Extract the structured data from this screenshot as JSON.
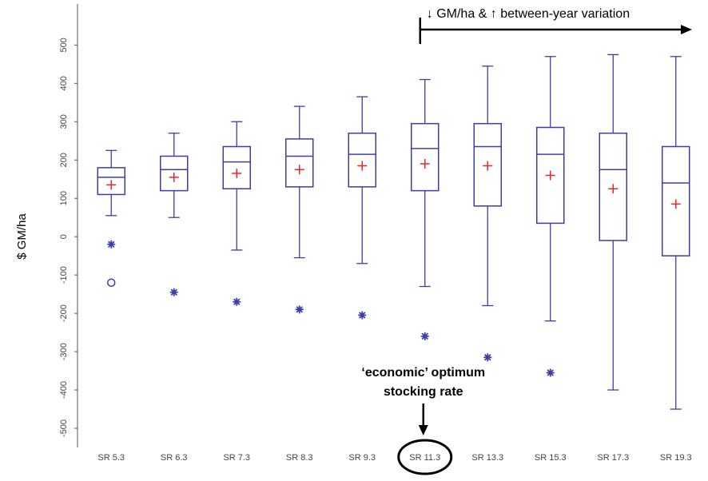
{
  "chart_data": {
    "type": "box",
    "y_label": "$ GM/ha",
    "categories": [
      "SR 5.3",
      "SR 6.3",
      "SR 7.3",
      "SR 8.3",
      "SR 9.3",
      "SR 11.3",
      "SR 13.3",
      "SR 15.3",
      "SR 17.3",
      "SR 19.3"
    ],
    "boxes": [
      {
        "min": 55,
        "q1": 110,
        "median": 155,
        "q3": 180,
        "max": 225,
        "mean": 135,
        "outliers": [
          -20,
          -120
        ],
        "outlier_markers": [
          "*",
          "o"
        ]
      },
      {
        "min": 50,
        "q1": 120,
        "median": 175,
        "q3": 210,
        "max": 270,
        "mean": 155,
        "outliers": [
          -145
        ],
        "outlier_markers": [
          "*"
        ]
      },
      {
        "min": -35,
        "q1": 125,
        "median": 195,
        "q3": 235,
        "max": 300,
        "mean": 165,
        "outliers": [
          -170
        ],
        "outlier_markers": [
          "*"
        ]
      },
      {
        "min": -55,
        "q1": 130,
        "median": 210,
        "q3": 255,
        "max": 340,
        "mean": 175,
        "outliers": [
          -190
        ],
        "outlier_markers": [
          "*"
        ]
      },
      {
        "min": -70,
        "q1": 130,
        "median": 215,
        "q3": 270,
        "max": 365,
        "mean": 185,
        "outliers": [
          -205
        ],
        "outlier_markers": [
          "*"
        ]
      },
      {
        "min": -130,
        "q1": 120,
        "median": 230,
        "q3": 295,
        "max": 410,
        "mean": 190,
        "outliers": [
          -260
        ],
        "outlier_markers": [
          "*"
        ]
      },
      {
        "min": -180,
        "q1": 80,
        "median": 235,
        "q3": 295,
        "max": 445,
        "mean": 185,
        "outliers": [
          -315
        ],
        "outlier_markers": [
          "*"
        ]
      },
      {
        "min": -220,
        "q1": 35,
        "median": 215,
        "q3": 285,
        "max": 470,
        "mean": 160,
        "outliers": [
          -355
        ],
        "outlier_markers": [
          "*"
        ]
      },
      {
        "min": -400,
        "q1": -10,
        "median": 175,
        "q3": 270,
        "max": 475,
        "mean": 125,
        "outliers": [],
        "outlier_markers": []
      },
      {
        "min": -450,
        "q1": -50,
        "median": 140,
        "q3": 235,
        "max": 470,
        "mean": 85,
        "outliers": [],
        "outlier_markers": []
      }
    ],
    "box_color": "#3d3da8",
    "mean_color": "#e8262a",
    "ylim": [
      -550,
      605
    ],
    "yticks": [
      -500,
      -400,
      -300,
      -200,
      -100,
      0,
      100,
      200,
      300,
      400,
      500
    ],
    "annotations": {
      "trend": "↓ GM/ha & ↑ between-year variation",
      "optimum": [
        "‘economic’ optimum",
        "stocking rate"
      ],
      "optimum_category": 5,
      "trend_from_category": 5
    }
  }
}
